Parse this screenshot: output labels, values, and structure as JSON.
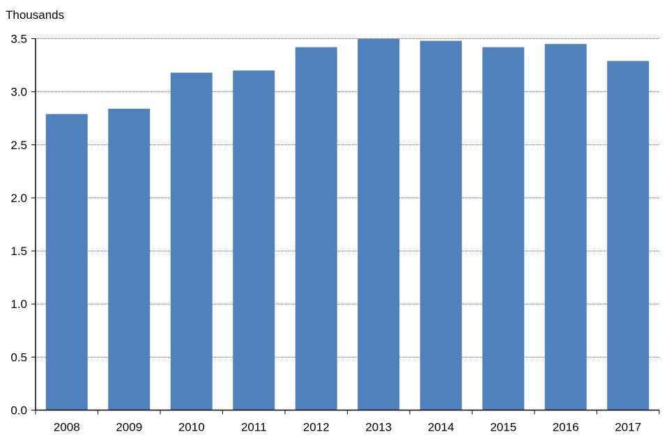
{
  "chart_data": {
    "type": "bar",
    "title": "",
    "ylabel": "Thousands",
    "xlabel": "",
    "categories": [
      "2008",
      "2009",
      "2010",
      "2011",
      "2012",
      "2013",
      "2014",
      "2015",
      "2016",
      "2017"
    ],
    "values": [
      2.79,
      2.84,
      3.18,
      3.2,
      3.42,
      3.5,
      3.48,
      3.42,
      3.45,
      3.29
    ],
    "ylim": [
      0,
      3.5
    ],
    "yticks": [
      "0.0",
      "0.5",
      "1.0",
      "1.5",
      "2.0",
      "2.5",
      "3.0",
      "3.5"
    ],
    "grid": "horizontal dotted",
    "bar_color": "#4f81bd",
    "legend": "none"
  }
}
